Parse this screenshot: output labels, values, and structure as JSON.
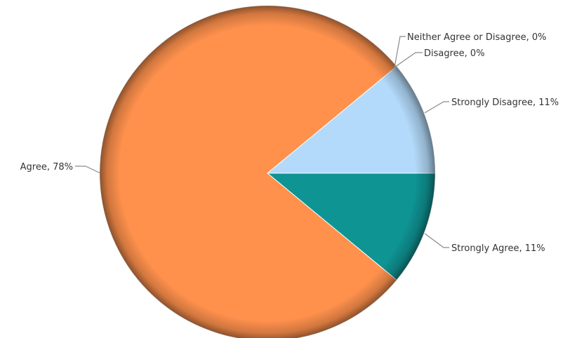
{
  "chart_data": {
    "type": "pie",
    "slices": [
      {
        "label": "Strongly Agree",
        "value": 11,
        "color": "#0f9494",
        "text": "Strongly Agree, 11%"
      },
      {
        "label": "Agree",
        "value": 78,
        "color": "#ff914d",
        "text": "Agree, 78%"
      },
      {
        "label": "Neither Agree or Disagree",
        "value": 0,
        "color": "#8e8e8e",
        "text": "Neither Agree or Disagree, 0%"
      },
      {
        "label": "Disagree",
        "value": 0,
        "color": "#cfcfcf",
        "text": "Disagree, 0%"
      },
      {
        "label": "Strongly Disagree",
        "value": 11,
        "color": "#b3dafa",
        "text": "Strongly Disagree, 11%"
      }
    ]
  }
}
